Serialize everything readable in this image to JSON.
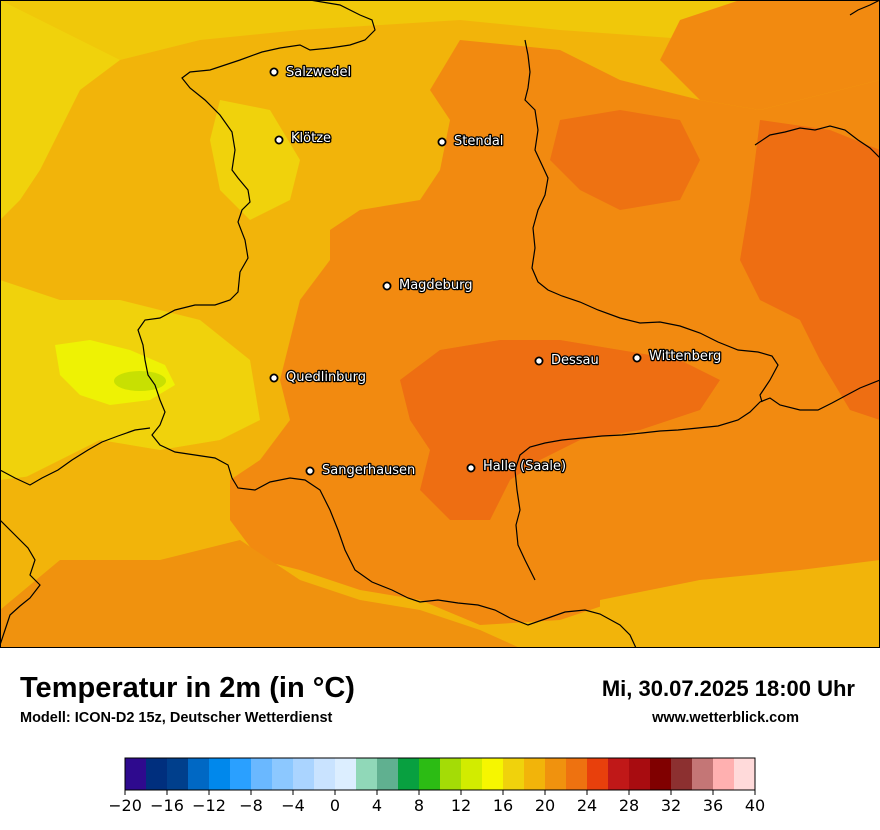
{
  "map": {
    "cities": [
      {
        "name": "Salzwedel"
      },
      {
        "name": "Klötze"
      },
      {
        "name": "Stendal"
      },
      {
        "name": "Magdeburg"
      },
      {
        "name": "Quedlinburg"
      },
      {
        "name": "Dessau"
      },
      {
        "name": "Wittenberg"
      },
      {
        "name": "Sangerhausen"
      },
      {
        "name": "Halle (Saale)"
      }
    ],
    "colors": {
      "orange_light": "#f2b40a",
      "orange": "#f28a10",
      "orange_dark": "#ee6e12",
      "yellow": "#f0d20c",
      "yellow_bright": "#eef204",
      "lime": "#c8e002",
      "border": "#000000"
    }
  },
  "header": {
    "title": "Temperatur in 2m (in °C)",
    "subtitle": "Modell: ICON-D2 15z, Deutscher Wetterdienst",
    "datetime": "Mi, 30.07.2025 18:00 Uhr",
    "website": "www.wetterblick.com"
  },
  "legend": {
    "min": -20,
    "max": 40,
    "step": 2,
    "tick_labels": [
      "−20",
      "−16",
      "−12",
      "−8",
      "−4",
      "0",
      "4",
      "8",
      "12",
      "16",
      "20",
      "24",
      "28",
      "32",
      "36",
      "40"
    ],
    "colors": [
      "#2e0a8e",
      "#002f7e",
      "#003f8c",
      "#0068c4",
      "#0088ec",
      "#2aa0ff",
      "#6ab8ff",
      "#8cc8ff",
      "#aad4ff",
      "#c9e3ff",
      "#dceeff",
      "#90d8b8",
      "#60b090",
      "#08a040",
      "#2cbc14",
      "#a4dc06",
      "#d2ec00",
      "#f6f600",
      "#f0d20c",
      "#f2b40a",
      "#f0920e",
      "#ee7210",
      "#e8400c",
      "#c01818",
      "#a80c10",
      "#800000",
      "#8c3030",
      "#c47676",
      "#ffb0b0",
      "#ffdada"
    ]
  }
}
